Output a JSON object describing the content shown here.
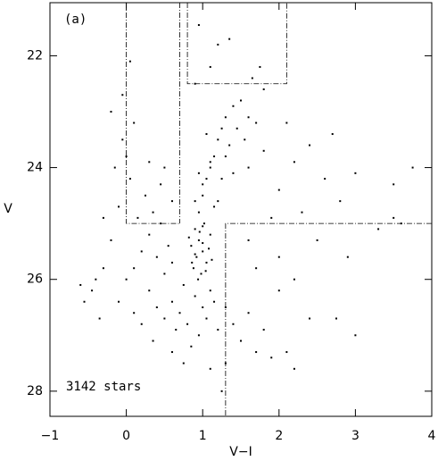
{
  "chart_data": {
    "type": "scatter",
    "x_label": "V−I",
    "y_label": "V",
    "color": "#000000",
    "annotations": [
      "(a)",
      "3142 stars"
    ],
    "xlim": [
      -1,
      4
    ],
    "ylim": [
      21.05,
      28.45
    ],
    "y_inverted": true,
    "xticks": [
      {
        "value": -1,
        "label": "−1"
      },
      0,
      1,
      2,
      3,
      4
    ],
    "yticks": [
      22,
      24,
      26,
      28
    ],
    "regions": [
      {
        "x": [
          0,
          0,
          0.7
        ],
        "y": [
          21.05,
          25,
          25
        ]
      },
      {
        "x": [
          0.7,
          0.7
        ],
        "y": [
          21.05,
          25
        ]
      },
      {
        "x": [
          0.8,
          0.8,
          2.1,
          2.1
        ],
        "y": [
          21.05,
          22.5,
          22.5,
          21.05
        ]
      },
      {
        "x": [
          4,
          1.3,
          1.3
        ],
        "y": [
          25,
          25,
          28.45
        ]
      }
    ],
    "x": [
      0.95,
      1.0,
      0.9,
      1.05,
      0.85,
      1.1,
      0.98,
      0.92,
      1.02,
      0.88,
      1.08,
      0.96,
      0.9,
      1.0,
      1.12,
      0.82,
      0.94,
      1.04,
      0.86,
      1.0,
      0.95,
      1.0,
      1.05,
      1.1,
      1.0,
      1.15,
      1.2,
      1.25,
      1.3,
      1.4,
      1.35,
      1.1,
      1.2,
      0.9,
      1.05,
      1.3,
      1.45,
      1.5,
      1.6,
      1.15,
      0.95,
      1.25,
      1.55,
      1.7,
      1.4,
      0.9,
      1.0,
      0.8,
      1.1,
      0.7,
      1.2,
      0.95,
      0.6,
      1.3,
      0.75,
      1.05,
      0.85,
      1.15,
      0.65,
      1.4,
      1.5,
      1.6,
      0.5,
      0.4,
      0.3,
      1.7,
      1.9,
      2.1,
      1.8,
      2.0,
      0.2,
      0.35,
      0.1,
      -0.1,
      0.0,
      0.2,
      0.1,
      0.3,
      0.4,
      0.5,
      0.15,
      0.25,
      0.05,
      -0.1,
      -0.2,
      -0.3,
      -0.4,
      0.35,
      0.45,
      0.55,
      0.6,
      0.0,
      -0.15,
      0.1,
      -0.05,
      -0.2,
      0.3,
      0.45,
      0.6,
      0.5,
      -0.3,
      -0.45,
      -0.55,
      -0.6,
      -0.35,
      0.05,
      -0.05,
      1.6,
      1.8,
      2.0,
      2.2,
      2.4,
      2.6,
      2.8,
      3.0,
      3.5,
      3.75,
      2.3,
      1.9,
      2.7,
      2.1,
      1.8,
      2.5,
      2.9,
      3.3,
      3.6,
      2.2,
      2.4,
      2.75,
      3.0,
      3.5,
      2.0,
      1.7,
      1.6,
      0.95,
      1.2,
      1.35,
      1.65,
      1.1,
      0.9,
      1.75,
      0.75,
      1.3,
      1.25,
      0.6,
      1.1,
      2.2
    ],
    "y": [
      25.3,
      25.5,
      25.1,
      25.7,
      25.4,
      25.2,
      25.9,
      25.6,
      25.0,
      25.8,
      25.45,
      25.15,
      25.55,
      25.35,
      25.65,
      25.25,
      26.0,
      25.85,
      25.7,
      25.05,
      24.8,
      24.5,
      24.2,
      24.0,
      24.3,
      23.8,
      23.5,
      23.3,
      23.1,
      22.9,
      23.6,
      23.9,
      24.6,
      24.6,
      23.4,
      23.8,
      23.3,
      22.8,
      23.1,
      24.7,
      24.1,
      24.2,
      23.5,
      23.2,
      24.1,
      26.3,
      26.5,
      26.8,
      26.2,
      26.6,
      26.9,
      27.0,
      26.4,
      26.5,
      26.1,
      26.7,
      27.2,
      26.4,
      26.9,
      26.8,
      27.1,
      26.6,
      26.7,
      26.5,
      26.2,
      27.3,
      27.4,
      27.3,
      26.9,
      26.2,
      26.8,
      27.1,
      26.6,
      26.4,
      26.0,
      25.5,
      25.8,
      25.2,
      25.6,
      25.9,
      24.9,
      24.5,
      24.2,
      24.7,
      25.3,
      25.8,
      26.0,
      24.8,
      25.0,
      25.4,
      25.7,
      23.8,
      24.0,
      23.2,
      22.7,
      23.0,
      23.9,
      24.3,
      24.6,
      24.0,
      24.9,
      26.2,
      26.4,
      26.1,
      26.7,
      22.1,
      23.5,
      24.0,
      23.7,
      24.4,
      23.9,
      23.6,
      24.2,
      24.6,
      24.1,
      24.3,
      24.0,
      24.8,
      24.9,
      23.4,
      23.2,
      22.6,
      25.3,
      25.6,
      25.1,
      25.0,
      26.0,
      26.7,
      26.7,
      27.0,
      24.9,
      25.6,
      25.8,
      25.3,
      21.45,
      21.8,
      21.7,
      22.4,
      22.2,
      22.5,
      22.2,
      27.5,
      27.5,
      28.0,
      27.3,
      27.6,
      27.6
    ]
  }
}
